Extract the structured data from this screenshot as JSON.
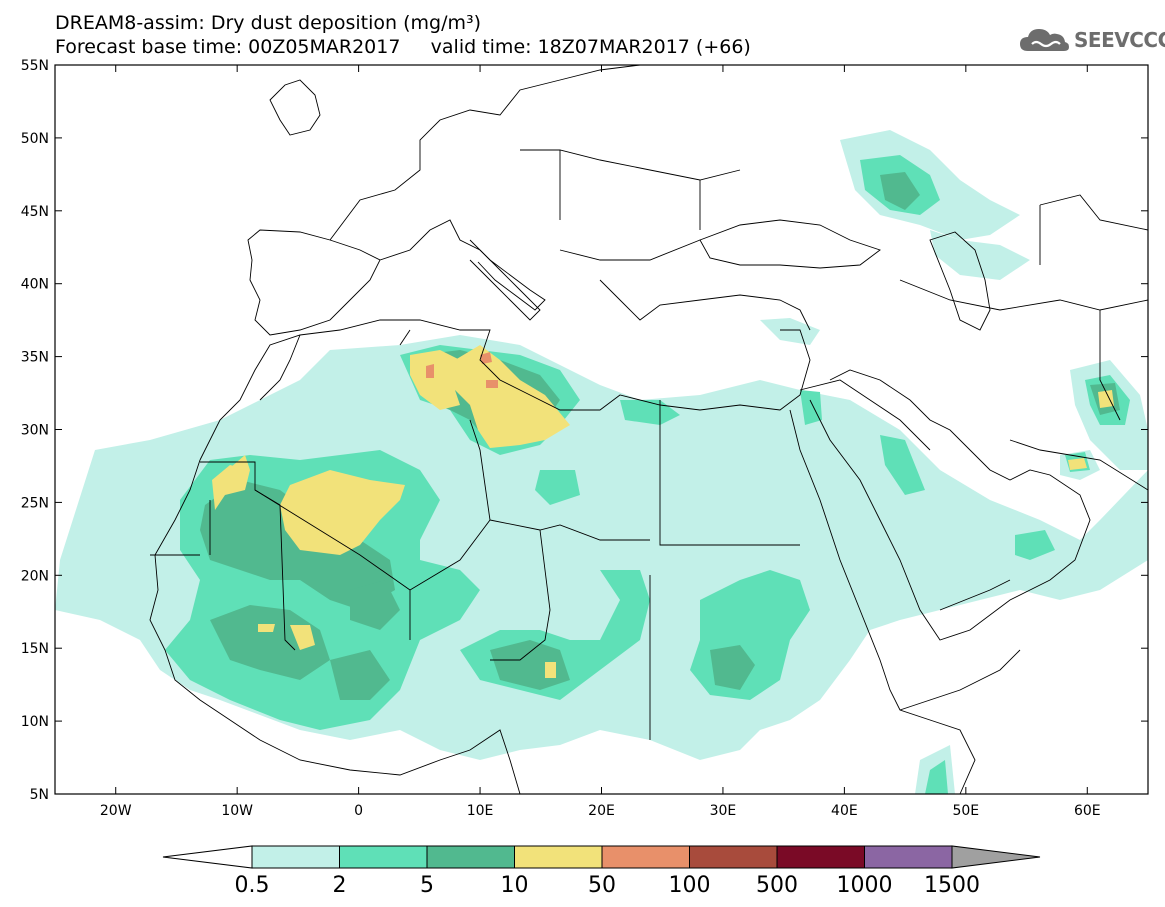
{
  "header": {
    "title": "DREAM8-assim: Dry dust deposition (mg/m³)",
    "base_time": "Forecast base time: 00Z05MAR2017",
    "valid_time": "valid time: 18Z07MAR2017 (+66)"
  },
  "logo": {
    "text": "SEEVCCC",
    "icon": "cloud-icon"
  },
  "map_data": {
    "lon_range": [
      -25,
      65
    ],
    "lat_range": [
      5,
      55
    ],
    "lat_ticks": [
      {
        "value": 55,
        "label": "55N"
      },
      {
        "value": 50,
        "label": "50N"
      },
      {
        "value": 45,
        "label": "45N"
      },
      {
        "value": 40,
        "label": "40N"
      },
      {
        "value": 35,
        "label": "35N"
      },
      {
        "value": 30,
        "label": "30N"
      },
      {
        "value": 25,
        "label": "25N"
      },
      {
        "value": 20,
        "label": "20N"
      },
      {
        "value": 15,
        "label": "15N"
      },
      {
        "value": 10,
        "label": "10N"
      },
      {
        "value": 5,
        "label": "5N"
      }
    ],
    "lon_ticks": [
      {
        "value": -20,
        "label": "20W"
      },
      {
        "value": -10,
        "label": "10W"
      },
      {
        "value": 0,
        "label": "0"
      },
      {
        "value": 10,
        "label": "10E"
      },
      {
        "value": 20,
        "label": "20E"
      },
      {
        "value": 30,
        "label": "30E"
      },
      {
        "value": 40,
        "label": "40E"
      },
      {
        "value": 50,
        "label": "50E"
      },
      {
        "value": 60,
        "label": "60E"
      }
    ]
  },
  "colorbar": {
    "labels": [
      "0.5",
      "2",
      "5",
      "10",
      "50",
      "100",
      "500",
      "1000",
      "1500"
    ],
    "colors": [
      "#c2f0e8",
      "#5fe0b7",
      "#51b98f",
      "#f2e27a",
      "#e8906a",
      "#a84b3c",
      "#7a0a26",
      "#8b66a3"
    ],
    "low_end_color": "#ffffff",
    "high_end_color": "#a0a0a0"
  }
}
